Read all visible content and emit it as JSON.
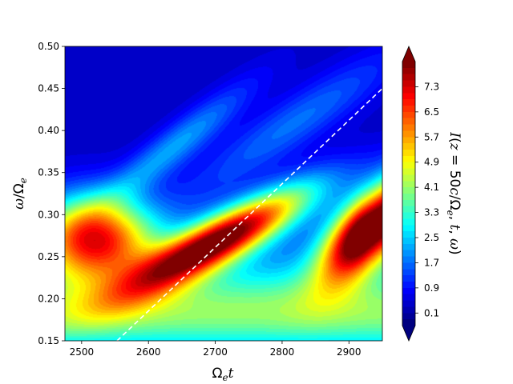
{
  "chart_data": {
    "type": "heatmap",
    "plot_kind": "filled contour",
    "colormap": "jet",
    "xlabel": "Ω_e t",
    "ylabel": "ω/Ω_e",
    "colorbar_label": "I(z = 50c/Ω_e, t, ω)",
    "xlim": [
      2475,
      2950
    ],
    "ylim": [
      0.15,
      0.5
    ],
    "x_ticks": [
      2500,
      2600,
      2700,
      2800,
      2900
    ],
    "x_tick_labels": [
      "2500",
      "2600",
      "2700",
      "2800",
      "2900"
    ],
    "y_ticks": [
      0.15,
      0.2,
      0.25,
      0.3,
      0.35,
      0.4,
      0.45,
      0.5
    ],
    "y_tick_labels": [
      "0.15",
      "0.20",
      "0.25",
      "0.30",
      "0.35",
      "0.40",
      "0.45",
      "0.50"
    ],
    "colorbar_ticks": [
      0.1,
      0.9,
      1.7,
      2.5,
      3.3,
      4.1,
      4.9,
      5.7,
      6.5,
      7.3
    ],
    "colorbar_tick_labels": [
      "0.1",
      "0.9",
      "1.7",
      "2.5",
      "3.3",
      "4.1",
      "4.9",
      "5.7",
      "6.5",
      "7.3"
    ],
    "colorbar_range": [
      -0.3,
      8.1
    ],
    "colorbar_extend": "both",
    "colors": {
      "dashed_line": "#ffffff",
      "under": "#00007f",
      "over": "#7f0000"
    },
    "dashed_line": {
      "style": "dashed",
      "points": [
        [
          2553,
          0.15
        ],
        [
          2950,
          0.45
        ]
      ]
    },
    "features": [
      {
        "name": "left lobe",
        "x": 2520,
        "y": 0.272,
        "peak": 6.9
      },
      {
        "name": "central ridge",
        "x": 2720,
        "y": 0.275,
        "peak": 8.0
      },
      {
        "name": "right lobe",
        "x": 2925,
        "y": 0.28,
        "peak": 8.3
      },
      {
        "name": "low-frequency band",
        "y": 0.18,
        "level": 3.0
      }
    ]
  }
}
